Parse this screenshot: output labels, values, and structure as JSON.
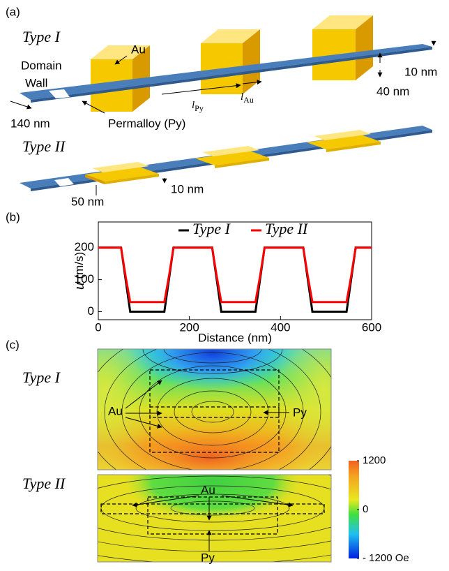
{
  "panel_a": {
    "label": "(a)",
    "type1_title": "Type I",
    "type2_title": "Type II",
    "au": "Au",
    "domain": "Domain",
    "wall": "Wall",
    "width_140": "140 nm",
    "permalloy": "Permalloy (Py)",
    "l_py": {
      "symbol": "l",
      "subscript": "Py"
    },
    "l_au": {
      "symbol": "l",
      "subscript": "Au"
    },
    "width_40": "40 nm",
    "thick_10": "10 nm",
    "width_50": "50 nm",
    "thick_10_b": "10 nm"
  },
  "chart_data": {
    "type": "line",
    "panel_label": "(b)",
    "ylabel_symbol": "u",
    "ylabel_unit": "(m/s)",
    "xlabel": "Distance (nm)",
    "xlim": [
      0,
      600
    ],
    "ylim": [
      -25,
      280
    ],
    "xticks": [
      0,
      200,
      400,
      600
    ],
    "yticks": [
      0,
      100,
      200
    ],
    "legend": "top",
    "x": [
      0,
      50,
      60,
      70,
      145,
      155,
      165,
      250,
      260,
      270,
      345,
      355,
      365,
      450,
      460,
      470,
      545,
      555,
      565,
      600
    ],
    "series": [
      {
        "name": "Type I",
        "color": "#000000",
        "values": [
          200,
          200,
          100,
          0,
          0,
          100,
          200,
          200,
          100,
          0,
          0,
          100,
          200,
          200,
          100,
          0,
          0,
          100,
          200,
          200
        ]
      },
      {
        "name": "Type II",
        "color": "#ff0000",
        "values": [
          200,
          200,
          110,
          30,
          30,
          110,
          200,
          200,
          110,
          30,
          30,
          110,
          200,
          200,
          110,
          30,
          30,
          110,
          200,
          200
        ]
      }
    ]
  },
  "panel_c": {
    "label": "(c)",
    "type1_title": "Type I",
    "type2_title": "Type II",
    "au_1": "Au",
    "py_1": "Py",
    "au_2": "Au",
    "py_2": "Py",
    "colorbar": {
      "lim": [
        -1200,
        1200
      ],
      "ticks": [
        1200,
        0,
        {
          "value": -1200,
          "label": "- 1200 Oe"
        }
      ]
    }
  }
}
